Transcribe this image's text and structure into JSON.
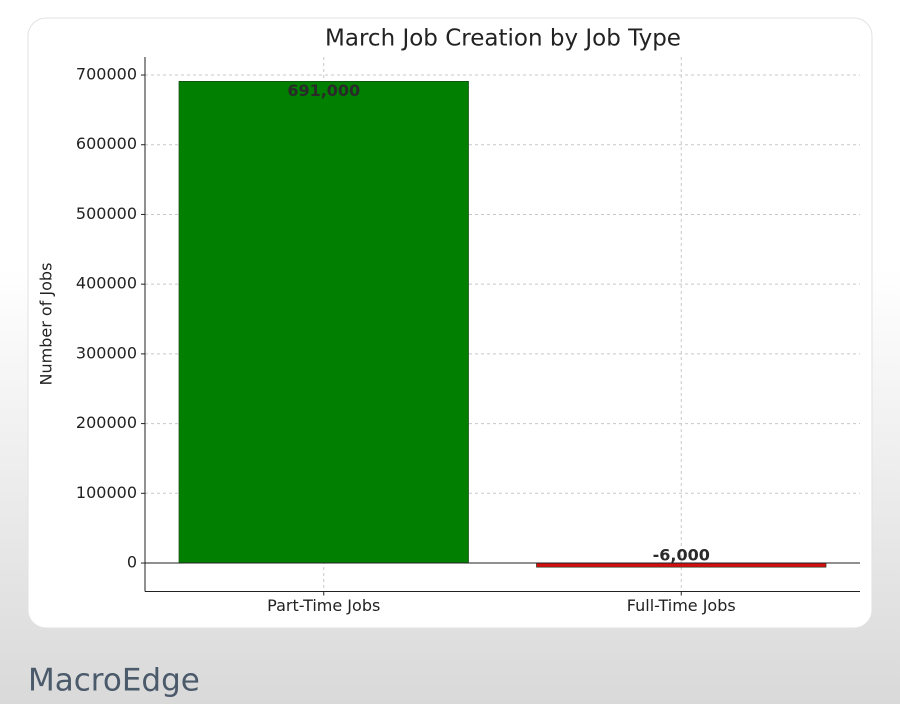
{
  "chart_data": {
    "type": "bar",
    "title": "March Job Creation by Job Type",
    "y_label": "Number of Jobs",
    "categories": [
      "Part-Time Jobs",
      "Full-Time Jobs"
    ],
    "values": [
      691000,
      -6000
    ],
    "value_labels": [
      "691,000",
      "-6,000"
    ],
    "colors": [
      "#007f00",
      "#d01010"
    ],
    "ylim": [
      -40850,
      725850
    ],
    "yticks": [
      0,
      100000,
      200000,
      300000,
      400000,
      500000,
      600000,
      700000
    ],
    "grid": true
  },
  "watermark": "MacroEdge"
}
